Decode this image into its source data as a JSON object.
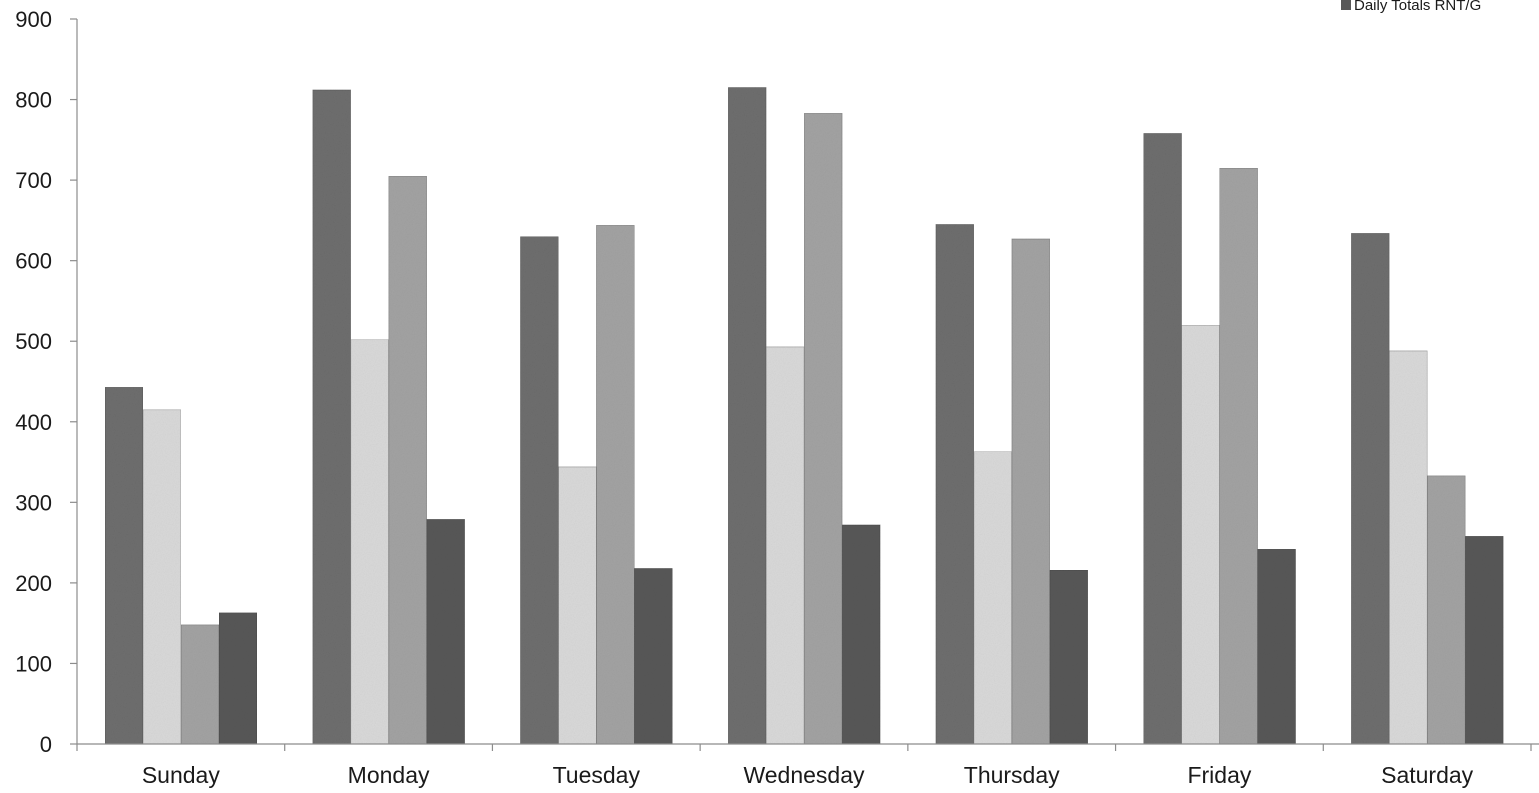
{
  "chart_data": {
    "type": "bar",
    "title": "",
    "xlabel": "",
    "ylabel": "",
    "ylim": [
      0,
      900
    ],
    "yticks": [
      0,
      100,
      200,
      300,
      400,
      500,
      600,
      700,
      800,
      900
    ],
    "grid": false,
    "legend_position": "top-right",
    "categories": [
      "Sunday",
      "Monday",
      "Tuesday",
      "Wednesday",
      "Thursday",
      "Friday",
      "Saturday"
    ],
    "series": [
      {
        "color": "#6e6e6e",
        "values": [
          443,
          812,
          630,
          815,
          645,
          758,
          634
        ]
      },
      {
        "color": "#d9d9d9",
        "values": [
          415,
          502,
          344,
          493,
          363,
          520,
          488
        ]
      },
      {
        "color": "#a3a3a3",
        "values": [
          148,
          705,
          644,
          783,
          627,
          715,
          333
        ]
      },
      {
        "name": "Daily Totals RNT/G",
        "color": "#585858",
        "values": [
          163,
          279,
          218,
          272,
          216,
          242,
          258
        ]
      }
    ]
  }
}
